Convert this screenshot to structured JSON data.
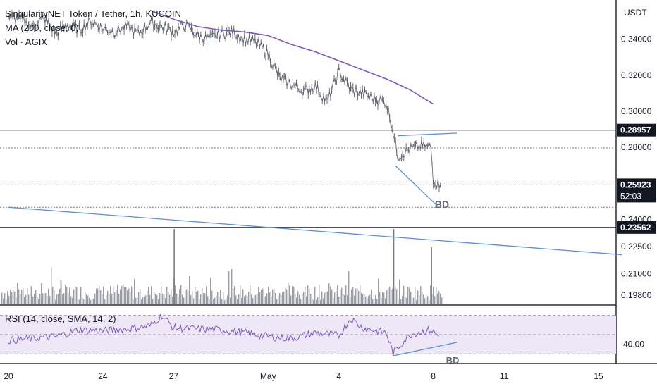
{
  "legend": {
    "symbol": "SingularityNET Token / Tether, 1h, KUCOIN",
    "ma": "MA (200, close, 0)",
    "vol": "Vol · AGIX"
  },
  "rsi_legend": "RSI (14, close, SMA, 14, 2)",
  "colors": {
    "candle": "#5d606b",
    "ma": "#7e57c2",
    "trendline": "#5b8fd6",
    "rsi_line": "#7e57c2",
    "rsi_band": "#ede7f6",
    "horizontal_line": "#131722",
    "volume": "#7a7d86"
  },
  "chart_data": [
    {
      "type": "line",
      "panel": "price",
      "currency": "USDT",
      "ylim": [
        0.193,
        0.357
      ],
      "y_ticks": [
        "0.34000",
        "0.32000",
        "0.30000",
        "0.28000",
        "0.24000",
        "0.22500",
        "0.21000",
        "0.19800"
      ],
      "y_tick_values": [
        0.34,
        0.32,
        0.3,
        0.28,
        0.24,
        0.225,
        0.21,
        0.198
      ],
      "x_ticks": [
        "20",
        "24",
        "27",
        "May",
        "4",
        "8",
        "11",
        "15"
      ],
      "x_tick_values": [
        0,
        4,
        7,
        11,
        14,
        18,
        21,
        25
      ],
      "xlim": [
        0,
        26
      ],
      "series": [
        {
          "kind": "price",
          "x": [
            0,
            0.5,
            1,
            1.5,
            2,
            2.5,
            3,
            3.5,
            4,
            4.5,
            5,
            5.5,
            6,
            6.5,
            7,
            7.5,
            8,
            8.5,
            9,
            9.5,
            10,
            10.5,
            11,
            11.5,
            12,
            12.5,
            13,
            13.5,
            14,
            14.5,
            15,
            15.5,
            16,
            16.2,
            16.5,
            17,
            17.5,
            17.9,
            18.0,
            18.3
          ],
          "values": [
            0.352,
            0.351,
            0.347,
            0.352,
            0.343,
            0.348,
            0.345,
            0.35,
            0.346,
            0.344,
            0.347,
            0.343,
            0.349,
            0.347,
            0.344,
            0.348,
            0.342,
            0.34,
            0.343,
            0.344,
            0.34,
            0.338,
            0.332,
            0.318,
            0.315,
            0.311,
            0.314,
            0.305,
            0.322,
            0.312,
            0.31,
            0.307,
            0.305,
            0.295,
            0.275,
            0.279,
            0.281,
            0.28,
            0.262,
            0.259
          ]
        },
        {
          "kind": "moving-average",
          "x": [
            6,
            7,
            8,
            9,
            10,
            11,
            12,
            13,
            14,
            15,
            16,
            17,
            18
          ],
          "values": [
            0.356,
            0.351,
            0.347,
            0.345,
            0.344,
            0.342,
            0.337,
            0.333,
            0.328,
            0.323,
            0.318,
            0.312,
            0.304
          ]
        }
      ],
      "horizontal_lines": [
        {
          "value": 0.28957,
          "label": "0.28957",
          "style": "solid"
        },
        {
          "value": 0.23562,
          "label": "0.23562",
          "style": "solid"
        },
        {
          "value": 0.27968,
          "style": "dotted"
        },
        {
          "value": 0.25923,
          "style": "dotted"
        },
        {
          "value": 0.2468,
          "style": "dotted"
        }
      ],
      "last_price": {
        "value": 0.25923,
        "label": "0.25923",
        "countdown": "52:03"
      },
      "trend_lines": [
        {
          "points": [
            [
              0,
              0.2468
            ],
            [
              26,
              0.2205
            ]
          ]
        },
        {
          "points": [
            [
              16.5,
              0.2865
            ],
            [
              19.0,
              0.2879
            ]
          ]
        },
        {
          "points": [
            [
              16.4,
              0.2698
            ],
            [
              18.2,
              0.2472
            ]
          ]
        }
      ],
      "annotations": [
        "BD"
      ]
    },
    {
      "type": "bar",
      "panel": "volume",
      "title": "Vol · AGIX",
      "spikes": [
        {
          "x": 2.2,
          "value": 0.32
        },
        {
          "x": 7.0,
          "value": 1.0
        },
        {
          "x": 16.3,
          "value": 1.0
        },
        {
          "x": 17.9,
          "value": 0.76
        }
      ]
    },
    {
      "type": "line",
      "panel": "rsi",
      "title": "RSI (14, close, SMA, 14, 2)",
      "ylim": [
        20,
        80
      ],
      "y_ticks": [
        "40.00"
      ],
      "y_tick_values": [
        40
      ],
      "bands": [
        70,
        50,
        30
      ],
      "x": [
        0,
        1,
        2,
        3,
        4,
        5,
        6,
        6.5,
        7,
        8,
        9,
        10,
        11,
        12,
        13,
        14,
        14.5,
        15,
        16,
        16.3,
        17,
        17.5,
        17.9,
        18.3
      ],
      "values": [
        44,
        46,
        48,
        55,
        54,
        56,
        59,
        70,
        57,
        56,
        55,
        52,
        48,
        46,
        52,
        49,
        67,
        57,
        52,
        31,
        50,
        53,
        55,
        47
      ],
      "trend_line": {
        "points": [
          [
            16.3,
            28
          ],
          [
            19.0,
            42
          ]
        ]
      },
      "annotations": [
        "BD"
      ]
    }
  ]
}
